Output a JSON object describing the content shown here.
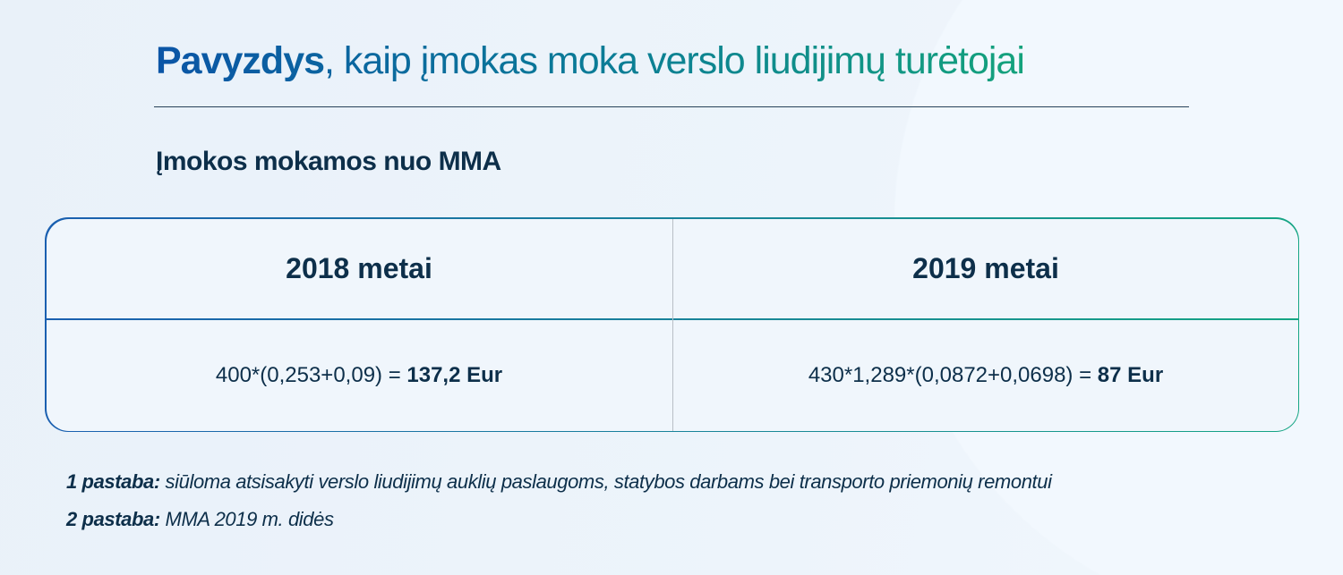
{
  "title": {
    "bold": "Pavyzdys",
    "rest": ", kaip įmokas moka verslo liudijimų turėtojai"
  },
  "subtitle": "Įmokos mokamos nuo MMA",
  "table": {
    "columns": [
      {
        "header": "2018 metai",
        "formula": "400*(0,253+0,09) = ",
        "result": "137,2 Eur"
      },
      {
        "header": "2019 metai",
        "formula": "430*1,289*(0,0872+0,0698) = ",
        "result": "87 Eur"
      }
    ]
  },
  "notes": [
    {
      "label": "1 pastaba:",
      "text": " siūloma atsisakyti verslo liudijimų auklių paslaugoms, statybos darbams bei transporto priemonių remontui"
    },
    {
      "label": "2 pastaba:",
      "text": " MMA 2019 m. didės"
    }
  ],
  "colors": {
    "blue": "#0b55a6",
    "green": "#14a27c",
    "text": "#0d2f4a"
  }
}
